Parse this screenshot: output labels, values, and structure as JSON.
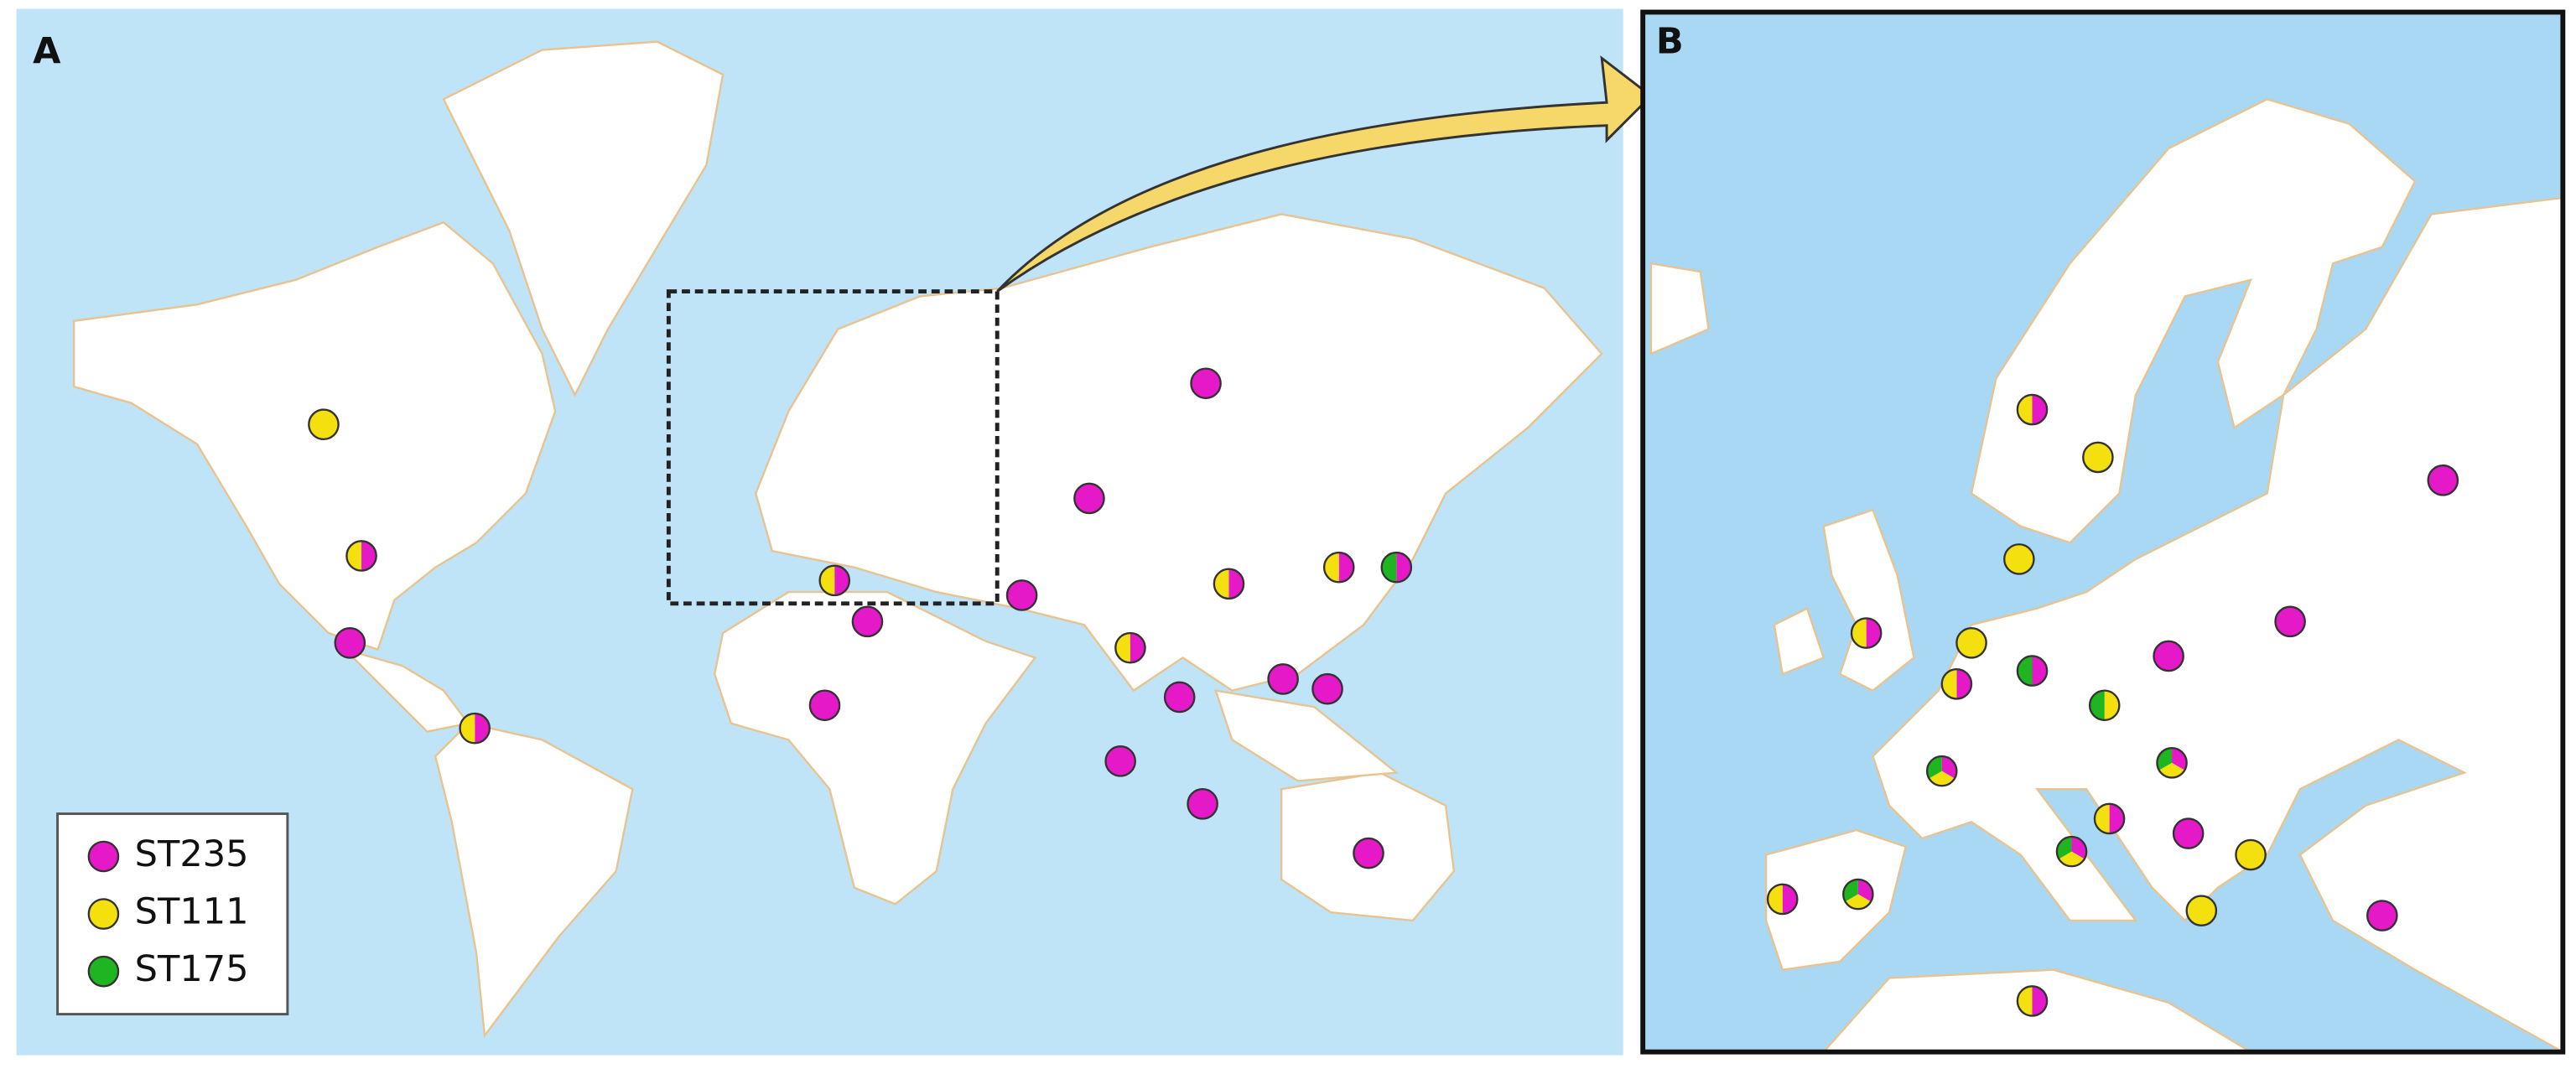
{
  "panels": {
    "a": "A",
    "b": "B"
  },
  "legend": [
    {
      "name": "ST235",
      "color": "#e619c8"
    },
    {
      "name": "ST111",
      "color": "#f5e00f"
    },
    {
      "name": "ST175",
      "color": "#1fb521"
    }
  ]
}
